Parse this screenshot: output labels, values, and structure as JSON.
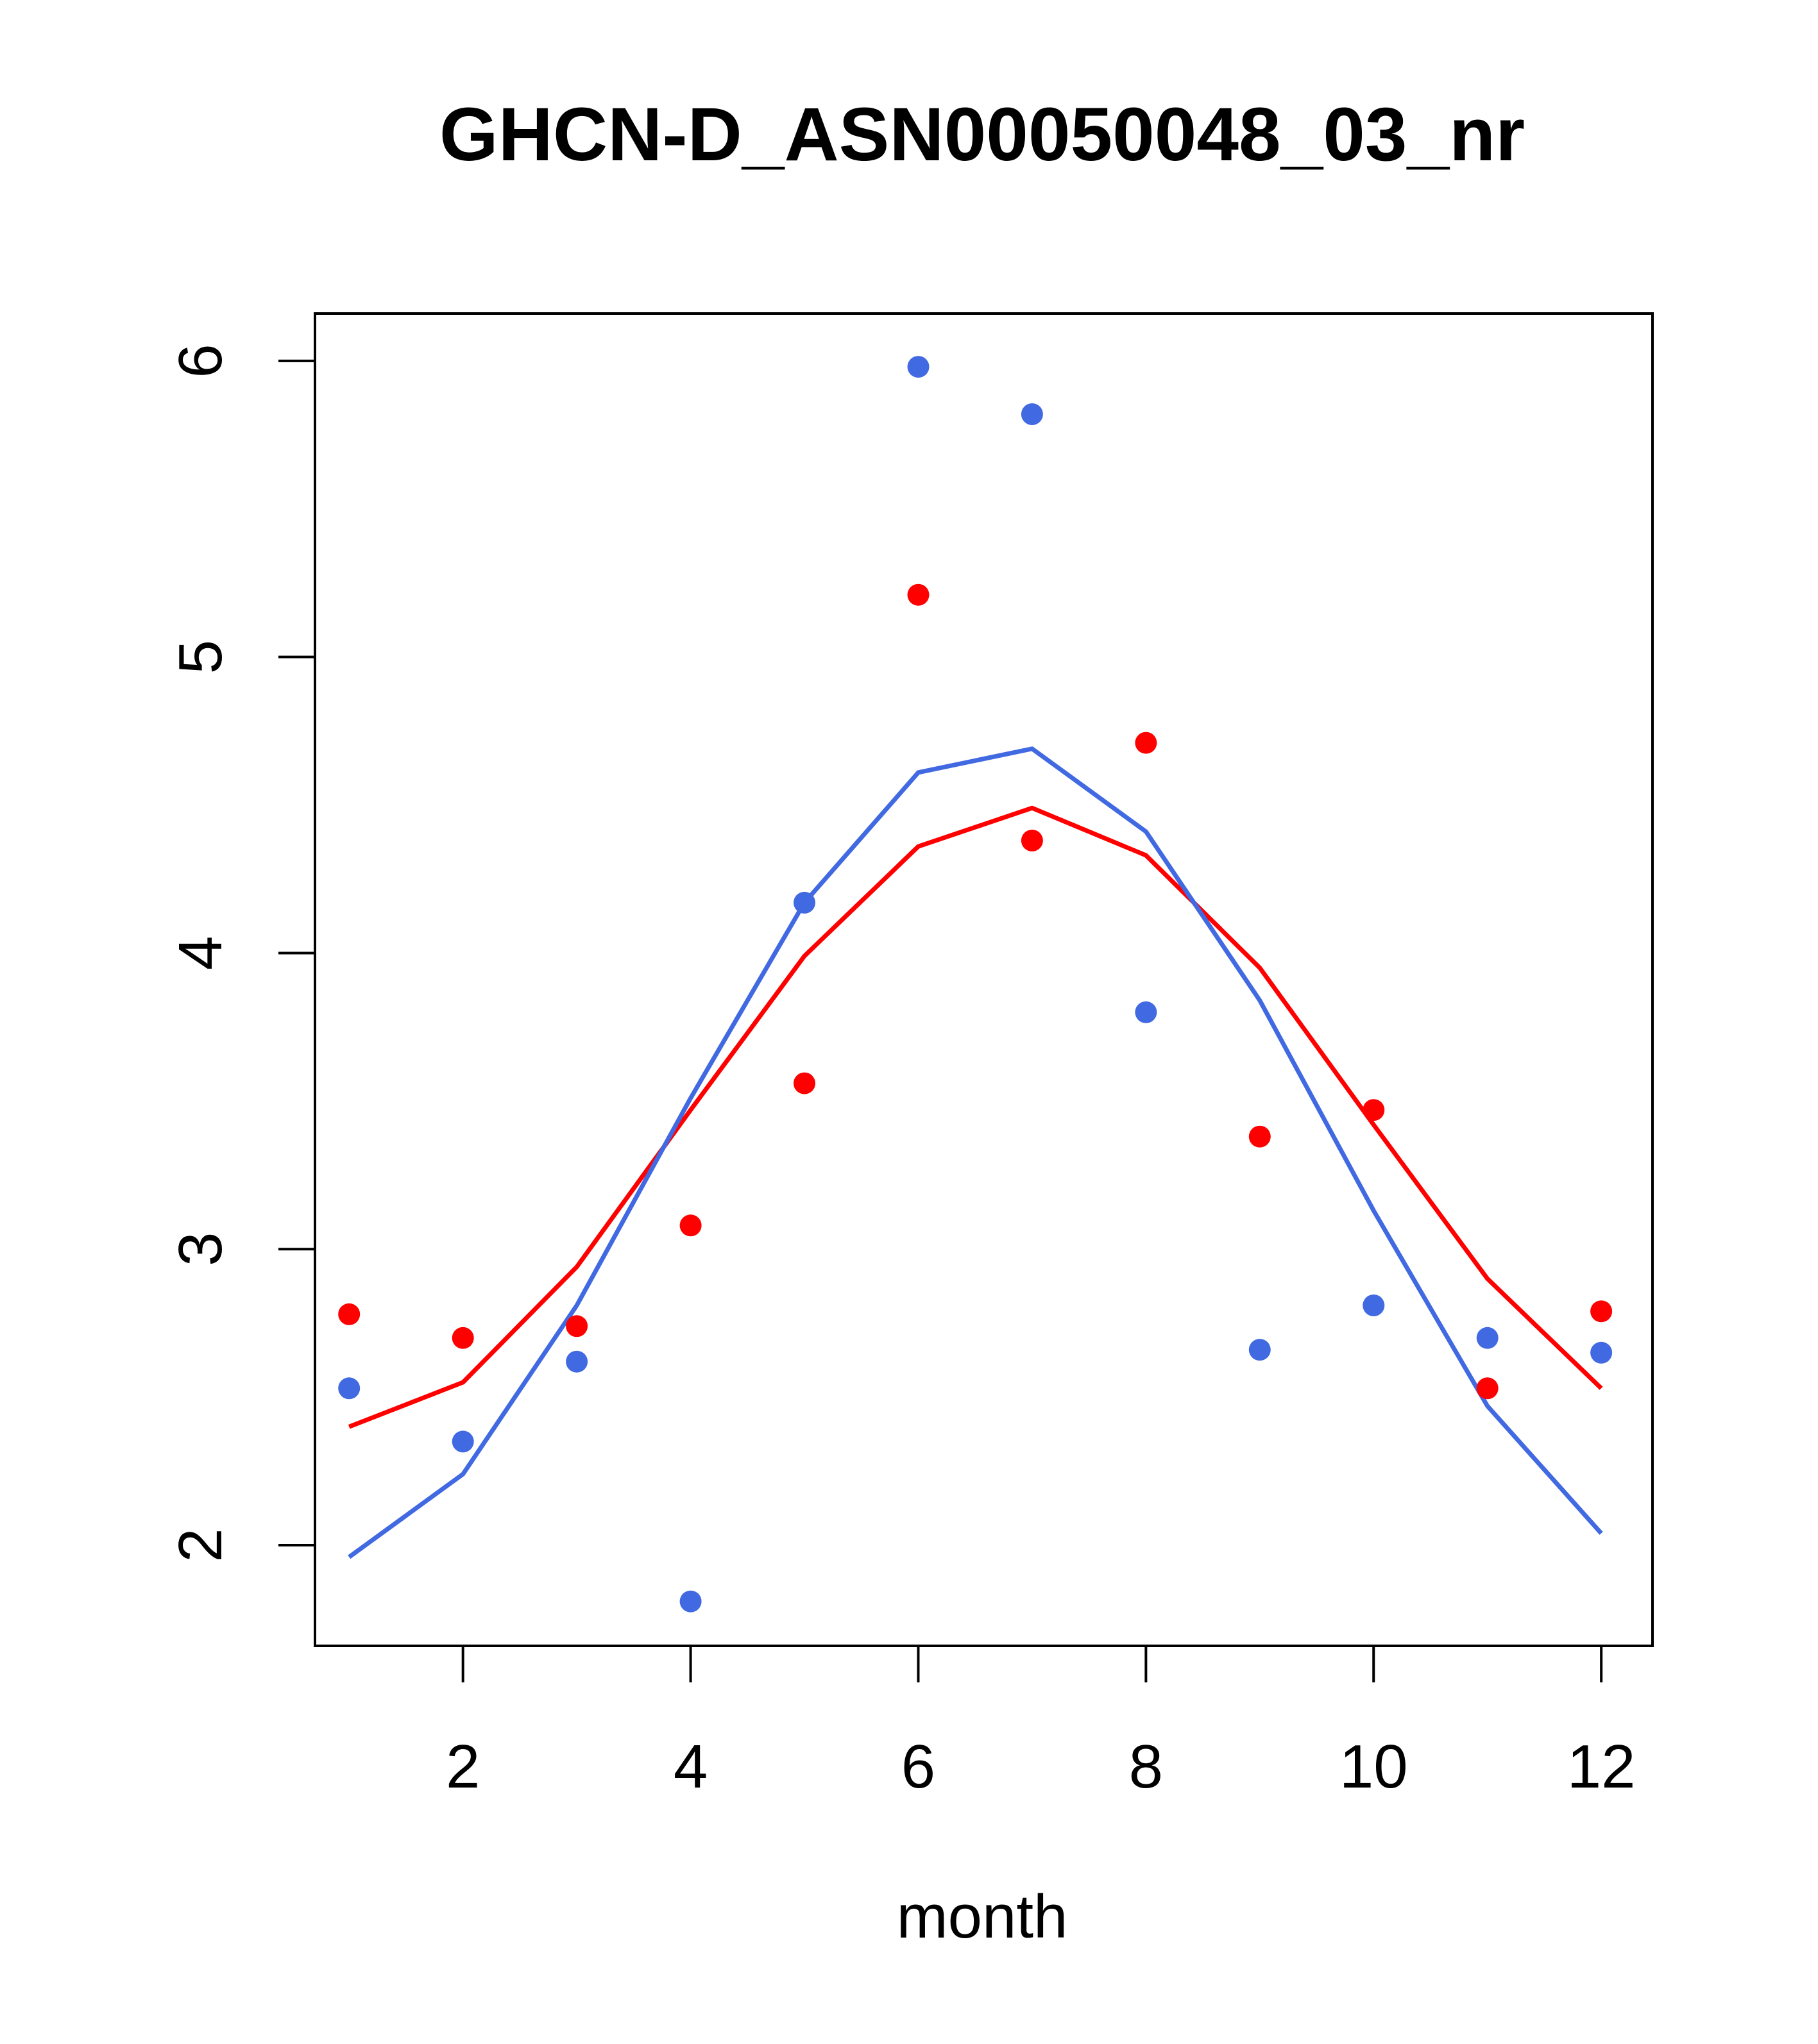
{
  "chart_data": {
    "type": "scatter",
    "title": "GHCN-D_ASN00050048_03_nr",
    "xlabel": "month",
    "ylabel": "",
    "xlim": [
      0.7,
      12.45
    ],
    "ylim": [
      1.66,
      6.16
    ],
    "xticks": [
      2,
      4,
      6,
      8,
      10,
      12
    ],
    "yticks": [
      2,
      3,
      4,
      5,
      6
    ],
    "grid": false,
    "legend": "none",
    "series": [
      {
        "color": "#ff0000",
        "points_x": [
          1,
          2,
          3,
          4,
          5,
          6,
          7,
          8,
          9,
          10,
          11,
          12
        ],
        "points_y": [
          2.78,
          2.7,
          2.74,
          3.08,
          3.56,
          5.21,
          4.38,
          4.71,
          3.38,
          3.47,
          2.53,
          2.79
        ],
        "line_x": [
          1,
          2,
          3,
          4,
          5,
          6,
          7,
          8,
          9,
          10,
          11,
          12
        ],
        "line_y": [
          2.4,
          2.55,
          2.94,
          3.47,
          3.99,
          4.36,
          4.49,
          4.33,
          3.95,
          3.42,
          2.9,
          2.53
        ]
      },
      {
        "color": "#4169e1",
        "points_x": [
          1,
          2,
          3,
          4,
          5,
          6,
          7,
          8,
          9,
          10,
          11,
          12
        ],
        "points_y": [
          2.53,
          2.35,
          2.62,
          1.81,
          4.17,
          5.98,
          5.82,
          3.8,
          2.66,
          2.81,
          2.7,
          2.65
        ],
        "line_x": [
          1,
          2,
          3,
          4,
          5,
          6,
          7,
          8,
          9,
          10,
          11,
          12
        ],
        "line_y": [
          1.96,
          2.24,
          2.81,
          3.51,
          4.17,
          4.61,
          4.69,
          4.41,
          3.84,
          3.13,
          2.47,
          2.04
        ]
      }
    ]
  }
}
